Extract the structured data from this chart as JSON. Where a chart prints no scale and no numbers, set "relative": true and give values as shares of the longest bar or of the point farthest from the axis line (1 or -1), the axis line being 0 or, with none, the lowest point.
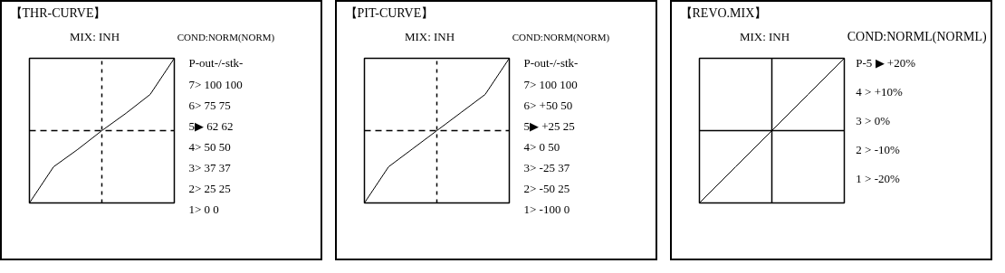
{
  "chart_data": [
    {
      "type": "line",
      "title": "【THR-CURVE】",
      "subtitle": "MIX: INH",
      "annotations": [
        "COND:NORM(NORM)",
        "P-out-/-stk-"
      ],
      "categories": [
        null,
        null,
        null,
        null,
        null,
        null,
        null
      ],
      "relative": true,
      "series": [
        {
          "color": "#000000",
          "values": [
            0,
            0.25,
            0.37,
            0.5,
            0.62,
            0.75,
            1
          ]
        }
      ],
      "value_labels": [
        "1> 0   0",
        "2> 25 25",
        "3> 37 37",
        "4> 50 50",
        "5▶ 62 62",
        "6> 75 75",
        "7> 100 100"
      ],
      "tick_labels": false,
      "ref_lines": [
        {
          "axis": "x",
          "color": "#000000",
          "line_style": "dotted"
        },
        {
          "axis": "y",
          "color": "#000000",
          "line_style": "dashed"
        }
      ]
    },
    {
      "type": "line",
      "title": "【PIT-CURVE】",
      "subtitle": "MIX: INH",
      "annotations": [
        "COND:NORM(NORM)",
        "P-out-/-stk-"
      ],
      "categories": [
        null,
        null,
        null,
        null,
        null,
        null,
        null
      ],
      "relative": true,
      "series": [
        {
          "color": "#000000",
          "values": [
            -1,
            -0.5,
            -0.25,
            0,
            0.25,
            0.5,
            1
          ]
        }
      ],
      "value_labels": [
        "1>  -100   0",
        "2>   -50 25",
        "3>   -25 37",
        "4>      0  50",
        "5▶ +25   25",
        "6> +50   50",
        "7> 100 100"
      ],
      "tick_labels": false,
      "ref_lines": [
        {
          "axis": "x",
          "color": "#000000",
          "line_style": "dotted"
        },
        {
          "axis": "y",
          "color": "#000000",
          "line_style": "dashed"
        }
      ]
    },
    {
      "type": "line",
      "title": "【REVO.MIX】",
      "subtitle": "MIX: INH",
      "annotations": [
        "COND:NORML(NORML)"
      ],
      "categories": [
        null,
        null,
        null,
        null,
        null
      ],
      "relative": true,
      "series": [
        {
          "color": "#000000",
          "values": [
            -1,
            -0.5,
            0,
            0.5,
            1
          ]
        }
      ],
      "value_labels": [
        "1 > -20%",
        "2 > -10%",
        "3 > 0%",
        "4 > +10%",
        "P-5 ▶ +20%"
      ],
      "tick_labels": false,
      "ref_lines": [
        {
          "axis": "x",
          "color": "#000000",
          "line_style": "solid"
        },
        {
          "axis": "y",
          "color": "#000000",
          "line_style": "solid"
        }
      ]
    }
  ]
}
